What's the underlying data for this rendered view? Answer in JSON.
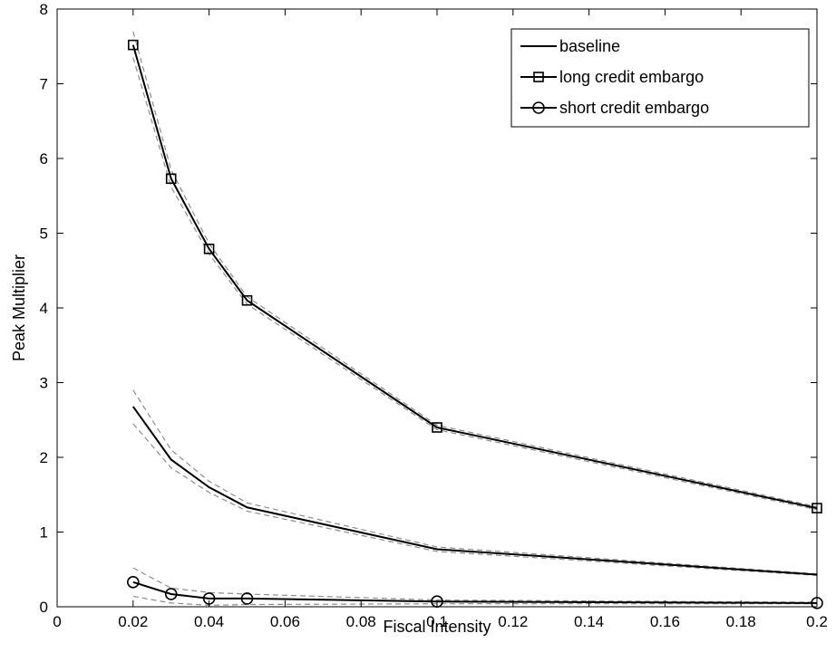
{
  "chart_data": {
    "type": "line",
    "title": "",
    "xlabel": "Fiscal  Intensity",
    "ylabel": "Peak Multiplier",
    "xlim": [
      0,
      0.2
    ],
    "ylim": [
      0,
      8
    ],
    "xticks": [
      "0",
      "0.02",
      "0.04",
      "0.06",
      "0.08",
      "0.1",
      "0.12",
      "0.14",
      "0.16",
      "0.18",
      "0.2"
    ],
    "yticks": [
      "0",
      "1",
      "2",
      "3",
      "4",
      "5",
      "6",
      "7",
      "8"
    ],
    "grid": false,
    "legend_position": "top-right",
    "x": [
      0.02,
      0.03,
      0.04,
      0.05,
      0.1,
      0.2
    ],
    "series": [
      {
        "name": "baseline",
        "marker": "none",
        "values": [
          2.68,
          1.97,
          1.6,
          1.33,
          0.77,
          0.43
        ],
        "band_upper": [
          2.9,
          2.1,
          1.68,
          1.39,
          0.8,
          0.44
        ],
        "band_lower": [
          2.45,
          1.86,
          1.53,
          1.28,
          0.74,
          0.42
        ]
      },
      {
        "name": "long credit embargo",
        "marker": "square",
        "values": [
          7.52,
          5.73,
          4.79,
          4.1,
          2.4,
          1.32
        ],
        "band_upper": [
          7.7,
          5.85,
          4.86,
          4.15,
          2.43,
          1.34
        ],
        "band_lower": [
          7.35,
          5.62,
          4.72,
          4.05,
          2.37,
          1.3
        ]
      },
      {
        "name": "short credit embargo",
        "marker": "circle",
        "values": [
          0.33,
          0.17,
          0.11,
          0.11,
          0.07,
          0.05
        ],
        "band_upper": [
          0.52,
          0.25,
          0.19,
          0.17,
          0.09,
          0.06
        ],
        "band_lower": [
          0.14,
          0.05,
          0.02,
          0.03,
          0.04,
          0.04
        ]
      }
    ]
  }
}
